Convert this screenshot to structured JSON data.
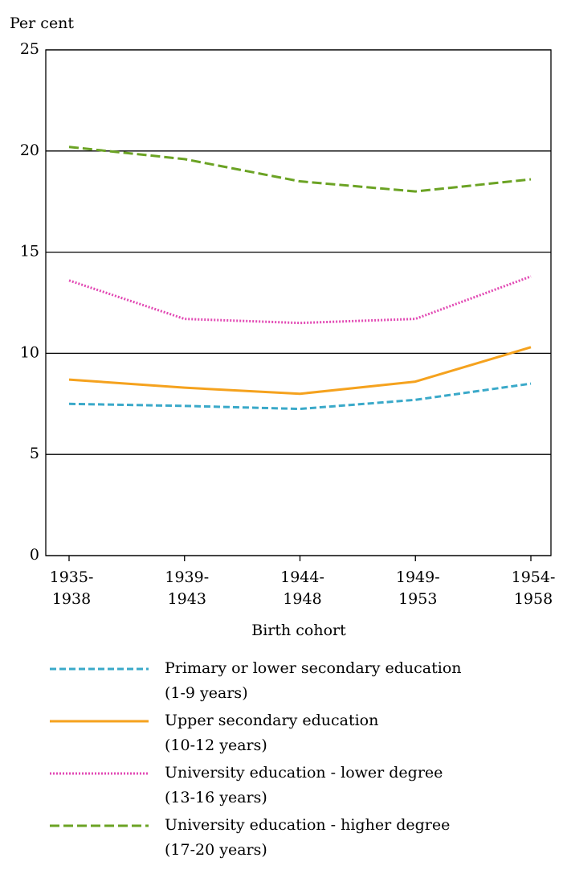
{
  "chart_data": {
    "type": "line",
    "y_label": "Per cent",
    "x_label": "Birth cohort",
    "categories": [
      "1935-\n1938",
      "1939-\n1943",
      "1944-\n1948",
      "1949-\n1953",
      "1954-\n1958"
    ],
    "ylim": [
      0,
      25
    ],
    "yticks": [
      0,
      5,
      10,
      15,
      20,
      25
    ],
    "grid": true,
    "series": [
      {
        "name": "Primary or lower secondary education\n(1-9 years)",
        "color": "#3aa9c9",
        "dash": "8,4",
        "values": [
          7.5,
          7.4,
          7.25,
          7.7,
          8.5
        ]
      },
      {
        "name": "Upper secondary education\n(10-12 years)",
        "color": "#f5a21e",
        "dash": "none",
        "values": [
          8.7,
          8.3,
          8.0,
          8.6,
          10.3
        ]
      },
      {
        "name": "University education - lower degree\n(13-16 years)",
        "color": "#e24ab4",
        "dash": "2,2",
        "values": [
          13.6,
          11.7,
          11.5,
          11.7,
          13.8
        ]
      },
      {
        "name": "University education - higher degree\n(17-20 years)",
        "color": "#6ba324",
        "dash": "12,5",
        "values": [
          20.2,
          19.6,
          18.5,
          18.0,
          18.6
        ]
      }
    ]
  }
}
